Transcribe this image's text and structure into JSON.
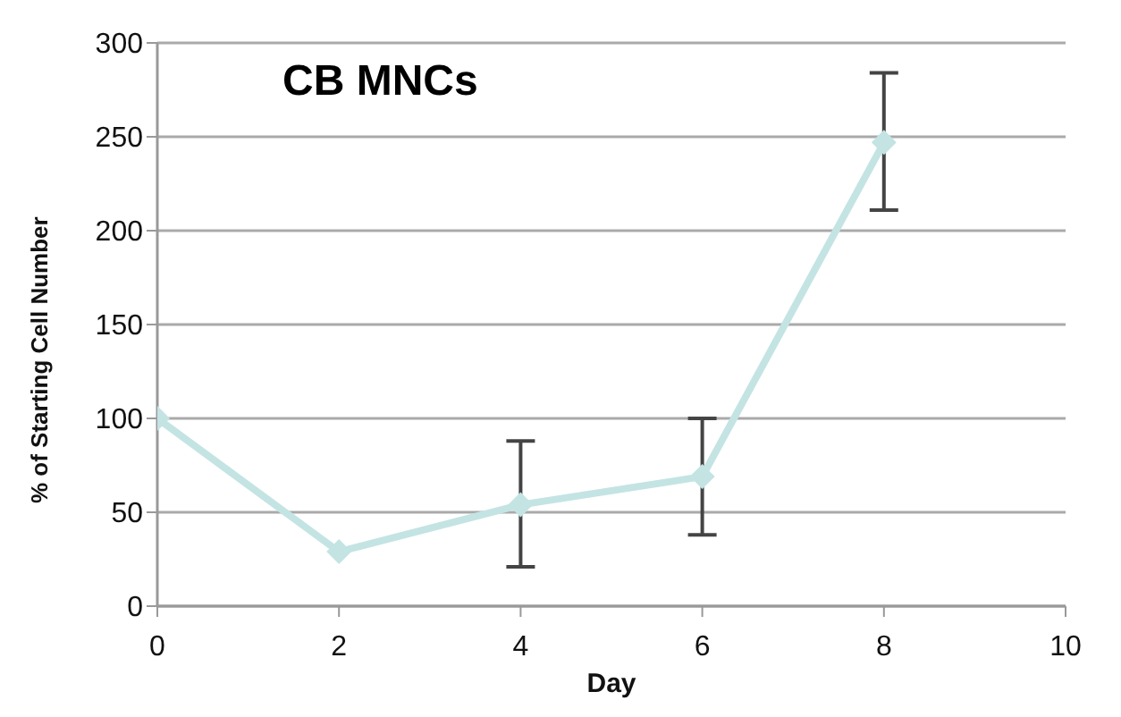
{
  "chart_data": {
    "type": "line",
    "title": "CB MNCs",
    "xlabel": "Day",
    "ylabel": "% of Starting Cell Number",
    "x": [
      0,
      2,
      4,
      6,
      8
    ],
    "series": [
      {
        "color": "#c4e4e4",
        "values": [
          100,
          29,
          54,
          69,
          247
        ],
        "errors": [
          null,
          null,
          [
            21,
            88
          ],
          [
            38,
            100
          ],
          [
            211,
            284
          ]
        ]
      }
    ],
    "xlim": [
      0,
      10
    ],
    "xticks": [
      0,
      2,
      4,
      6,
      8,
      10
    ],
    "ylim": [
      0,
      300
    ],
    "yticks": [
      0,
      50,
      100,
      150,
      200,
      250,
      300
    ],
    "grid": "y",
    "legend": false,
    "marker": "diamond",
    "line_style": "solid"
  }
}
